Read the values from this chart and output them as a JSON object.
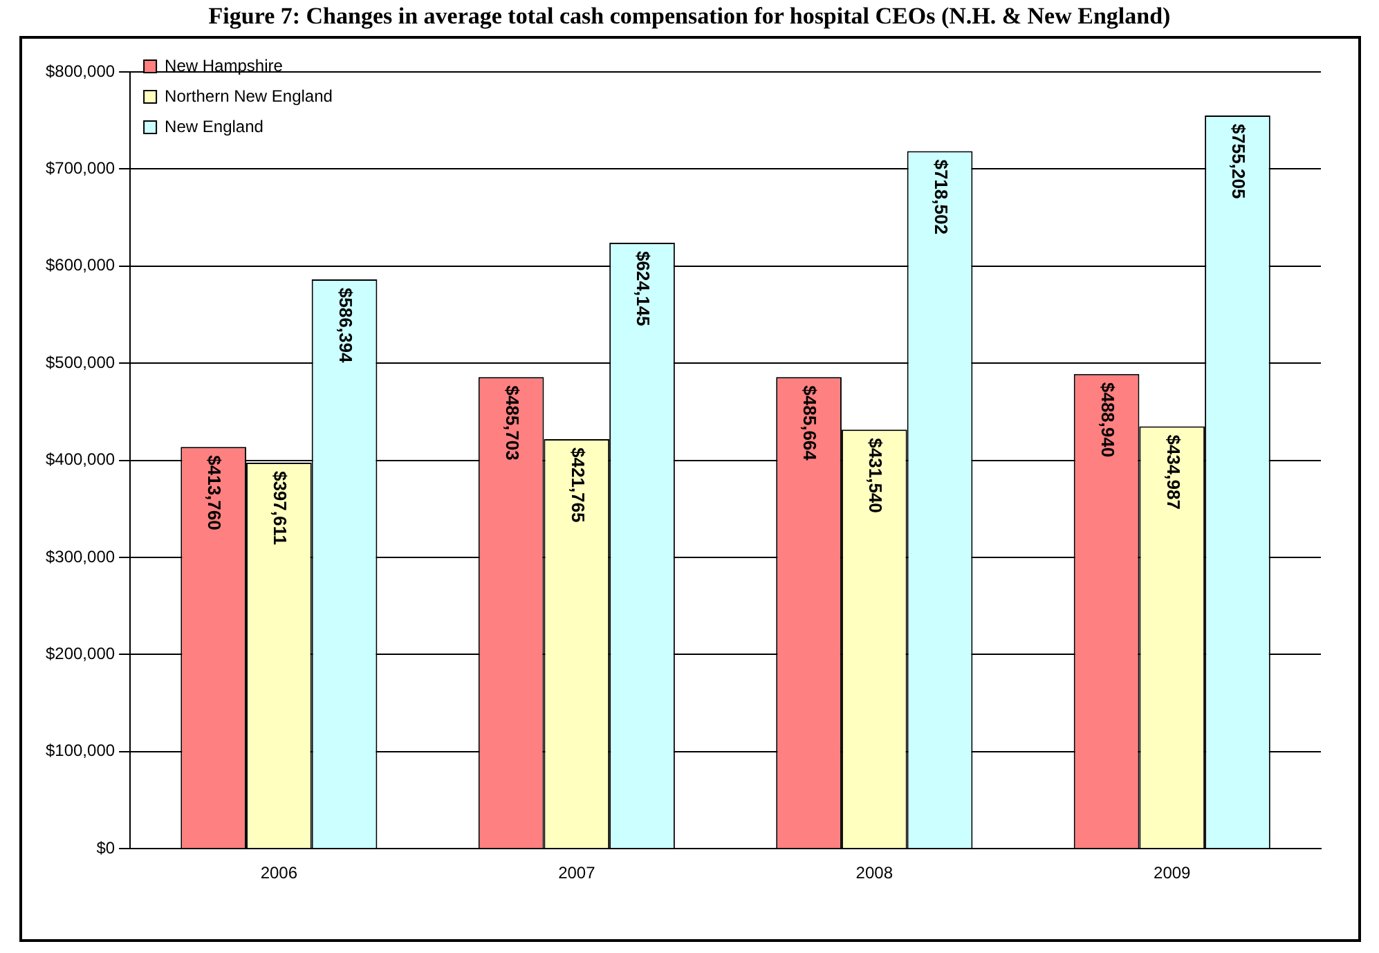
{
  "chart_data": {
    "type": "bar",
    "title": "Figure 7: Changes in average total cash compensation for hospital CEOs (N.H. & New England)",
    "categories": [
      "2006",
      "2007",
      "2008",
      "2009"
    ],
    "series": [
      {
        "name": "New Hampshire",
        "color": "#ff8080",
        "values": [
          413760,
          485703,
          485664,
          488940
        ],
        "value_labels": [
          "$413,760",
          "$485,703",
          "$485,664",
          "$488,940"
        ]
      },
      {
        "name": "Northern New England",
        "color": "#ffffc0",
        "values": [
          397611,
          421765,
          431540,
          434987
        ],
        "value_labels": [
          "$397,611",
          "$421,765",
          "$431,540",
          "$434,987"
        ]
      },
      {
        "name": "New England",
        "color": "#ccffff",
        "values": [
          586394,
          624145,
          718502,
          755205
        ],
        "value_labels": [
          "$586,394",
          "$624,145",
          "$718,502",
          "$755,205"
        ]
      }
    ],
    "ylim": [
      0,
      800000
    ],
    "yticks": [
      {
        "value": 0,
        "label": "$0"
      },
      {
        "value": 100000,
        "label": "$100,000"
      },
      {
        "value": 200000,
        "label": "$200,000"
      },
      {
        "value": 300000,
        "label": "$300,000"
      },
      {
        "value": 400000,
        "label": "$400,000"
      },
      {
        "value": 500000,
        "label": "$500,000"
      },
      {
        "value": 600000,
        "label": "$600,000"
      },
      {
        "value": 700000,
        "label": "$700,000"
      },
      {
        "value": 800000,
        "label": "$800,000"
      }
    ],
    "grid": "y",
    "legend": "top left"
  }
}
